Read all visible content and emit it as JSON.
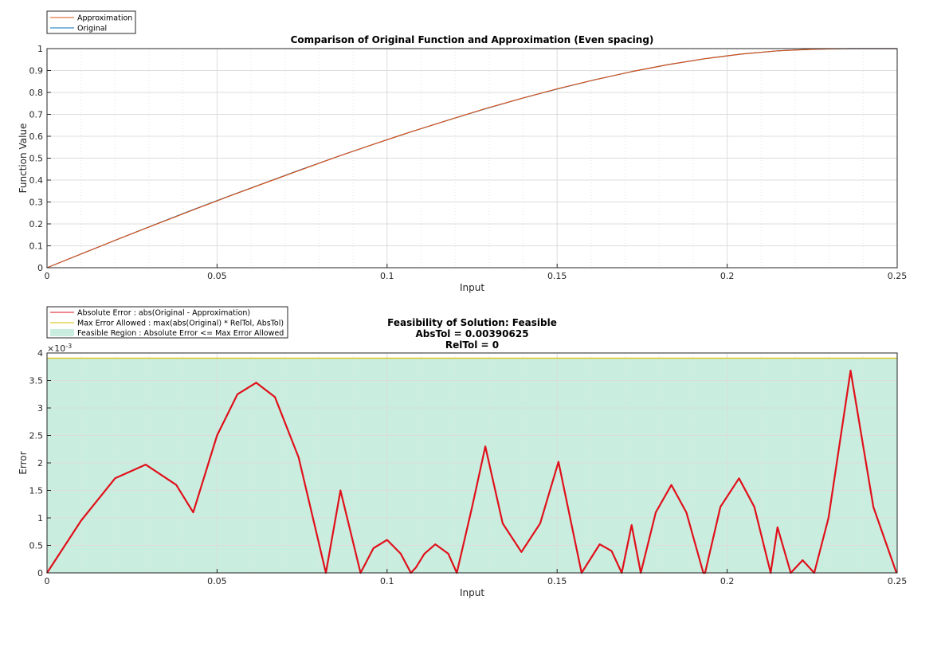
{
  "chart_data": [
    {
      "type": "line",
      "title": "Comparison of Original Function and Approximation (Even spacing)",
      "xlabel": "Input",
      "ylabel": "Function Value",
      "xlim": [
        0,
        0.25
      ],
      "ylim": [
        0,
        1
      ],
      "xticks": [
        "0",
        "0.05",
        "0.1",
        "0.15",
        "0.2",
        "0.25"
      ],
      "yticks": [
        "0",
        "0.1",
        "0.2",
        "0.3",
        "0.4",
        "0.5",
        "0.6",
        "0.7",
        "0.8",
        "0.9",
        "1"
      ],
      "grid": true,
      "legend_location": "top-left outside",
      "series": [
        {
          "name": "Approximation",
          "color": "#d95319",
          "x": [
            0,
            0.0107,
            0.0215,
            0.0322,
            0.043,
            0.0537,
            0.0645,
            0.0752,
            0.0859,
            0.0967,
            0.1074,
            0.1182,
            0.1289,
            0.1396,
            0.1504,
            0.1611,
            0.1719,
            0.1826,
            0.1934,
            0.2041,
            0.2148,
            0.2256,
            0.2363,
            0.25
          ],
          "y": [
            0,
            0.067,
            0.134,
            0.199,
            0.264,
            0.327,
            0.389,
            0.45,
            0.51,
            0.567,
            0.622,
            0.675,
            0.726,
            0.773,
            0.818,
            0.858,
            0.895,
            0.927,
            0.954,
            0.975,
            0.99,
            0.997,
            1.0,
            1.0
          ]
        },
        {
          "name": "Original",
          "color": "#0072bd",
          "x": [
            0,
            0.0107,
            0.0215,
            0.0322,
            0.043,
            0.0537,
            0.0645,
            0.0752,
            0.0859,
            0.0967,
            0.1074,
            0.1182,
            0.1289,
            0.1396,
            0.1504,
            0.1611,
            0.1719,
            0.1826,
            0.1934,
            0.2041,
            0.2148,
            0.2256,
            0.2363,
            0.25
          ],
          "y": [
            0,
            0.067,
            0.134,
            0.2,
            0.265,
            0.328,
            0.39,
            0.451,
            0.51,
            0.567,
            0.622,
            0.675,
            0.725,
            0.773,
            0.817,
            0.858,
            0.895,
            0.927,
            0.954,
            0.975,
            0.99,
            0.998,
            1.0,
            1.0
          ]
        }
      ]
    },
    {
      "type": "line",
      "title": "Feasibility of Solution: Feasible",
      "subtitle_lines": [
        "AbsTol = 0.00390625",
        "RelTol = 0"
      ],
      "xlabel": "Input",
      "ylabel": "Error",
      "y_exponent_base": "×10",
      "y_exponent_power": "-3",
      "xlim": [
        0,
        0.25
      ],
      "ylim": [
        0,
        4
      ],
      "xticks": [
        "0",
        "0.05",
        "0.1",
        "0.15",
        "0.2",
        "0.25"
      ],
      "yticks": [
        "0",
        "0.5",
        "1",
        "1.5",
        "2",
        "2.5",
        "3",
        "3.5",
        "4"
      ],
      "grid": true,
      "legend_location": "top-left outside",
      "series": [
        {
          "name": "Absolute Error : abs(Original - Approximation)",
          "color": "#e0101a",
          "x": [
            0,
            0.01,
            0.02,
            0.029,
            0.038,
            0.043,
            0.05,
            0.056,
            0.0615,
            0.067,
            0.074,
            0.082,
            0.0863,
            0.0922,
            0.096,
            0.1,
            0.104,
            0.107,
            0.1085,
            0.111,
            0.1142,
            0.118,
            0.1205,
            0.125,
            0.1289,
            0.134,
            0.1395,
            0.145,
            0.1504,
            0.1572,
            0.1625,
            0.166,
            0.169,
            0.1719,
            0.1746,
            0.179,
            0.1836,
            0.188,
            0.193,
            0.1935,
            0.198,
            0.2035,
            0.208,
            0.2128,
            0.2148,
            0.2187,
            0.2222,
            0.2256,
            0.2298,
            0.2363,
            0.243,
            0.2498
          ],
          "y": [
            0,
            0.95,
            1.72,
            1.97,
            1.6,
            1.1,
            2.5,
            3.25,
            3.46,
            3.2,
            2.1,
            0.0,
            1.5,
            0.0,
            0.45,
            0.6,
            0.35,
            0.0,
            0.1,
            0.35,
            0.52,
            0.35,
            0.0,
            1.2,
            2.3,
            0.9,
            0.38,
            0.9,
            2.02,
            0.0,
            0.52,
            0.4,
            0.0,
            0.87,
            0.0,
            1.1,
            1.6,
            1.1,
            0.0,
            0.0,
            1.2,
            1.72,
            1.2,
            0.0,
            0.83,
            0.0,
            0.23,
            0.0,
            1.0,
            3.68,
            1.2,
            0.0
          ]
        },
        {
          "name": "Max Error Allowed : max(abs(Original) * RelTol, AbsTol)",
          "color": "#d9c200",
          "x": [
            0,
            0.25
          ],
          "y": [
            3.90625,
            3.90625
          ]
        }
      ],
      "region": {
        "name": "Feasible Region : Absolute Error <= Max Error Allowed",
        "color": "#c9eee0"
      }
    }
  ]
}
